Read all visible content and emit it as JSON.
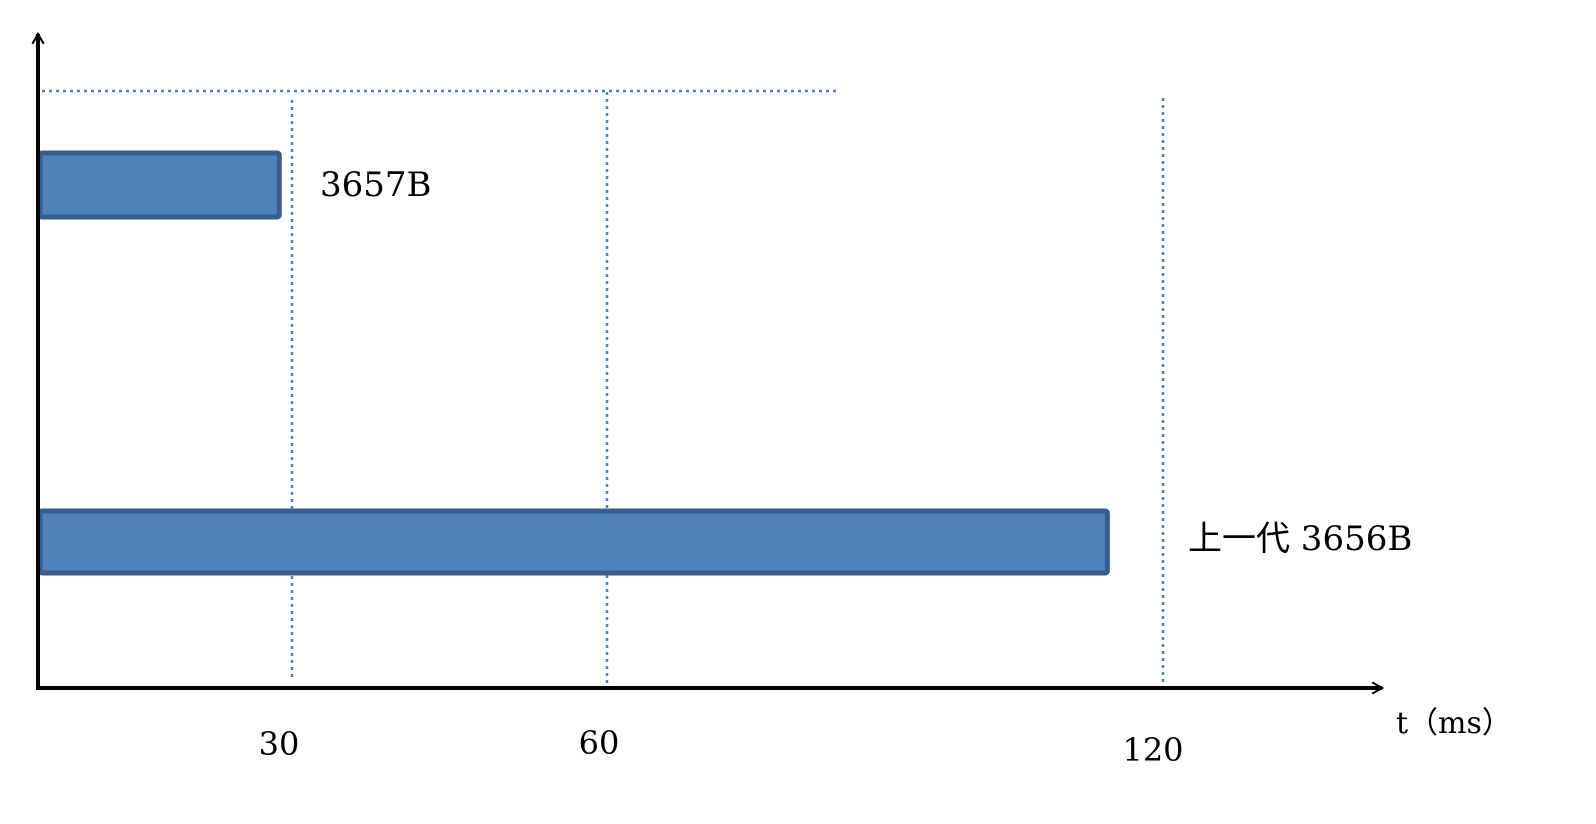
{
  "chart_data": {
    "type": "bar",
    "orientation": "horizontal",
    "xlabel": "t（ms）",
    "x_ticks": [
      30,
      60,
      120
    ],
    "tick_labels": [
      "30",
      "60",
      "120"
    ],
    "bars": [
      {
        "label": "3657B",
        "start": 0,
        "end": 28.5
      },
      {
        "label": "上一代 3656B",
        "start": 0,
        "end": 114
      }
    ],
    "grid": "dotted vertical lines at ticks, dotted horizontal reference line at top",
    "colors": {
      "bar_fill": "#4f81bd",
      "bar_stroke": "#385d8a",
      "grid": "#4f81bd",
      "axis": "#000000"
    }
  }
}
